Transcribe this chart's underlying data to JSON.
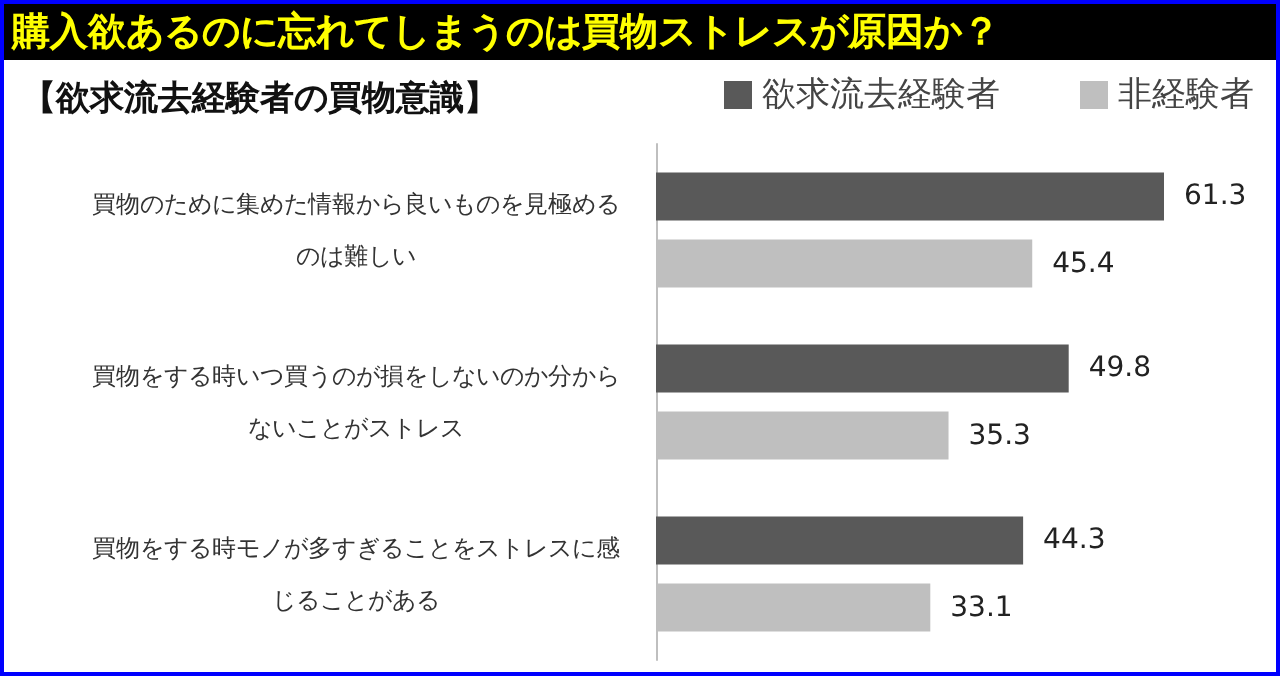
{
  "chart_data": {
    "type": "bar",
    "orientation": "horizontal",
    "title": "購入欲あるのに忘れてしまうのは買物ストレスが原因か？",
    "subtitle": "【欲求流去経験者の買物意識】",
    "categories": [
      "買物のために集めた情報から良いものを見極めるのは難しい",
      "買物をする時いつ買うのが損をしないのか分からないことがストレス",
      "買物をする時モノが多すぎることをストレスに感じることがある"
    ],
    "series": [
      {
        "name": "欲求流去経験者",
        "color": "#595959",
        "values": [
          61.3,
          49.8,
          44.3
        ]
      },
      {
        "name": "非経験者",
        "color": "#bfbfbf",
        "values": [
          45.4,
          35.3,
          33.1
        ]
      }
    ],
    "data_labels": true,
    "legend": "top right"
  }
}
